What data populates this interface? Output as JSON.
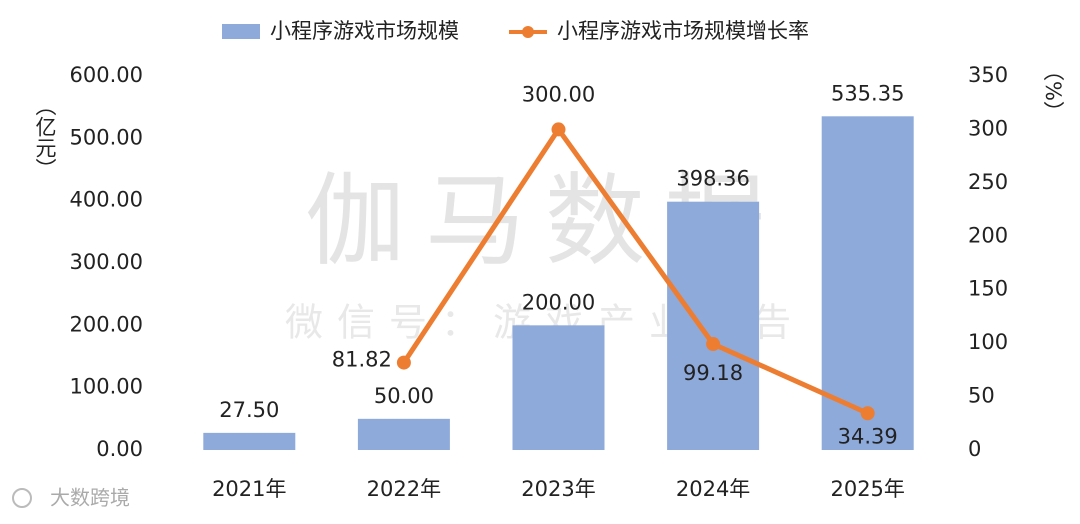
{
  "chart_data": {
    "type": "combo",
    "categories": [
      "2021年",
      "2022年",
      "2023年",
      "2024年",
      "2025年"
    ],
    "series": [
      {
        "name": "小程序游戏市场规模",
        "type": "bar",
        "axis": "y",
        "color": "#8eaadb",
        "values": [
          27.5,
          50,
          200,
          398.36,
          535.35
        ],
        "value_labels": [
          "27.50",
          "50.00",
          "200.00",
          "398.36",
          "535.35"
        ]
      },
      {
        "name": "小程序游戏市场规模增长率",
        "type": "line",
        "axis": "y2",
        "color": "#ed7d31",
        "values": [
          null,
          81.82,
          300,
          99.18,
          34.39
        ],
        "value_labels": [
          null,
          "81.82",
          "300.00",
          "99.18",
          "34.39"
        ]
      }
    ],
    "ylabel": "（亿元）",
    "y2label": "（%）",
    "ylim": [
      0,
      600
    ],
    "yticks": [
      {
        "value": 0,
        "label": "0.00"
      },
      {
        "value": 100,
        "label": "100.00"
      },
      {
        "value": 200,
        "label": "200.00"
      },
      {
        "value": 300,
        "label": "300.00"
      },
      {
        "value": 400,
        "label": "400.00"
      },
      {
        "value": 500,
        "label": "500.00"
      },
      {
        "value": 600,
        "label": "600.00"
      }
    ],
    "y2lim": [
      0,
      350
    ],
    "y2ticks": [
      0,
      50,
      100,
      150,
      200,
      250,
      300,
      350
    ],
    "legend": "top",
    "watermark": "伽马数据",
    "watermark_sub": "微信号：游戏产业报告",
    "logo": "大数跨境"
  }
}
